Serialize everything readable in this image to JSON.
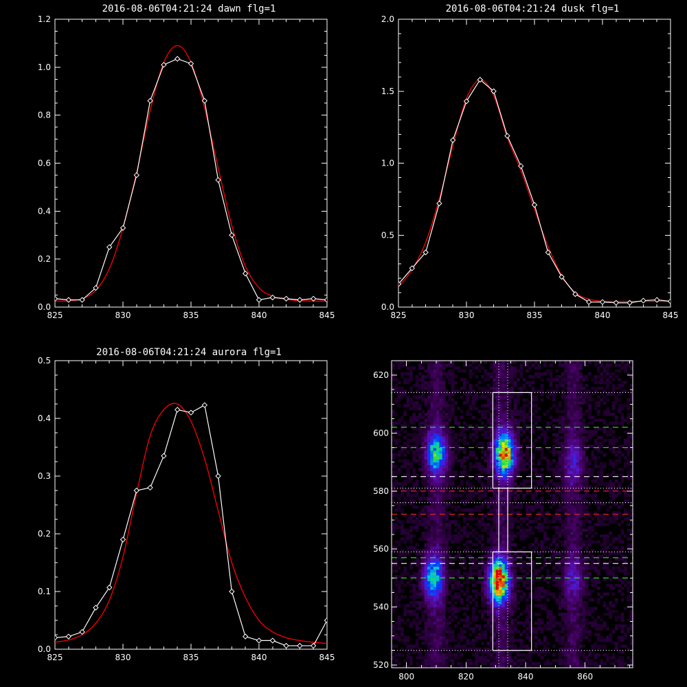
{
  "chart_data": [
    {
      "type": "line",
      "title": "2016-08-06T04:21:24 dawn flg=1",
      "xlim": [
        825,
        845
      ],
      "ylim": [
        0,
        1.2
      ],
      "xticks": [
        "825",
        "830",
        "835",
        "840",
        "845"
      ],
      "yticks": [
        "0.0",
        "0.2",
        "0.4",
        "0.6",
        "0.8",
        "1.0",
        "1.2"
      ],
      "series": [
        {
          "style": "white-diamonds",
          "color": "#ffffff",
          "x": [
            825,
            826,
            827,
            828,
            829,
            830,
            831,
            832,
            833,
            834,
            835,
            836,
            837,
            838,
            839,
            840,
            841,
            842,
            843,
            844,
            845
          ],
          "y": [
            0.035,
            0.03,
            0.03,
            0.08,
            0.25,
            0.33,
            0.55,
            0.86,
            1.01,
            1.035,
            1.015,
            0.86,
            0.53,
            0.3,
            0.14,
            0.03,
            0.04,
            0.035,
            0.03,
            0.035,
            0.03
          ]
        },
        {
          "style": "red-fit",
          "color": "#ff0000",
          "x": [
            825,
            826,
            827,
            828,
            829,
            830,
            831,
            832,
            833,
            834,
            835,
            836,
            837,
            838,
            839,
            840,
            841,
            842,
            843,
            844,
            845
          ],
          "y": [
            0.025,
            0.026,
            0.035,
            0.07,
            0.16,
            0.33,
            0.56,
            0.82,
            1.02,
            1.09,
            1.02,
            0.83,
            0.58,
            0.34,
            0.17,
            0.08,
            0.045,
            0.032,
            0.027,
            0.025,
            0.025
          ]
        }
      ]
    },
    {
      "type": "line",
      "title": "2016-08-06T04:21:24 dusk flg=1",
      "xlim": [
        825,
        845
      ],
      "ylim": [
        0,
        2.0
      ],
      "xticks": [
        "825",
        "830",
        "835",
        "840",
        "845"
      ],
      "yticks": [
        "0.0",
        "0.5",
        "1.0",
        "1.5",
        "2.0"
      ],
      "series": [
        {
          "style": "white-diamonds",
          "color": "#ffffff",
          "x": [
            825,
            826,
            827,
            828,
            829,
            830,
            831,
            832,
            833,
            834,
            835,
            836,
            837,
            838,
            839,
            840,
            841,
            842,
            843,
            844,
            845
          ],
          "y": [
            0.16,
            0.27,
            0.38,
            0.72,
            1.16,
            1.43,
            1.58,
            1.5,
            1.19,
            0.98,
            0.71,
            0.38,
            0.21,
            0.09,
            0.035,
            0.035,
            0.03,
            0.03,
            0.045,
            0.05,
            0.04
          ]
        },
        {
          "style": "red-fit",
          "color": "#ff0000",
          "x": [
            825,
            826,
            827,
            828,
            829,
            830,
            831,
            832,
            833,
            834,
            835,
            836,
            837,
            838,
            839,
            840,
            841,
            842,
            843,
            844,
            845
          ],
          "y": [
            0.14,
            0.26,
            0.45,
            0.75,
            1.12,
            1.45,
            1.58,
            1.47,
            1.18,
            0.95,
            0.68,
            0.42,
            0.22,
            0.1,
            0.055,
            0.04,
            0.04,
            0.04,
            0.04,
            0.04,
            0.04
          ]
        }
      ]
    },
    {
      "type": "line",
      "title": "2016-08-06T04:21:24 aurora flg=1",
      "xlim": [
        825,
        845
      ],
      "ylim": [
        0,
        0.5
      ],
      "xticks": [
        "825",
        "830",
        "835",
        "840",
        "845"
      ],
      "yticks": [
        "0.0",
        "0.1",
        "0.2",
        "0.3",
        "0.4",
        "0.5"
      ],
      "series": [
        {
          "style": "white-diamonds",
          "color": "#ffffff",
          "x": [
            825,
            826,
            827,
            828,
            829,
            830,
            831,
            832,
            833,
            834,
            835,
            836,
            837,
            838,
            839,
            840,
            841,
            842,
            843,
            844,
            845
          ],
          "y": [
            0.02,
            0.022,
            0.03,
            0.072,
            0.107,
            0.19,
            0.275,
            0.28,
            0.335,
            0.415,
            0.41,
            0.423,
            0.3,
            0.1,
            0.022,
            0.015,
            0.015,
            0.006,
            0.006,
            0.006,
            0.05
          ]
        },
        {
          "style": "red-fit",
          "color": "#ff0000",
          "x": [
            825,
            826,
            827,
            828,
            829,
            830,
            831,
            832,
            833,
            834,
            835,
            836,
            837,
            838,
            839,
            840,
            841,
            842,
            843,
            844,
            845
          ],
          "y": [
            0.012,
            0.016,
            0.025,
            0.045,
            0.085,
            0.16,
            0.27,
            0.37,
            0.415,
            0.425,
            0.395,
            0.33,
            0.24,
            0.15,
            0.09,
            0.05,
            0.03,
            0.02,
            0.015,
            0.012,
            0.01
          ]
        }
      ]
    },
    {
      "type": "heatmap",
      "xlim": [
        795,
        876
      ],
      "ylim": [
        519,
        625
      ],
      "xticks": [
        "800",
        "820",
        "840",
        "860"
      ],
      "yticks": [
        "520",
        "540",
        "560",
        "580",
        "600",
        "620"
      ],
      "blobs": [
        {
          "x": 810,
          "y": 593,
          "peak": 0.55
        },
        {
          "x": 809,
          "y": 550,
          "peak": 0.55
        },
        {
          "x": 833,
          "y": 593,
          "peak": 0.85
        },
        {
          "x": 831,
          "y": 549,
          "peak": 1.0
        },
        {
          "x": 856,
          "y": 590,
          "peak": 0.2
        },
        {
          "x": 856,
          "y": 550,
          "peak": 0.18
        }
      ],
      "boxes": [
        {
          "x": [
            829,
            842
          ],
          "y": [
            581,
            614
          ],
          "color": "#ffffff"
        },
        {
          "x": [
            829,
            842
          ],
          "y": [
            525,
            559
          ],
          "color": "#ffffff"
        }
      ],
      "vlines": [
        {
          "x": 831,
          "style": "dotted",
          "color": "#ffffff"
        },
        {
          "x": 834,
          "style": "dotted",
          "color": "#ffffff"
        }
      ],
      "hlines": [
        {
          "y": 614,
          "style": "dotted",
          "color": "#ffffff"
        },
        {
          "y": 602,
          "style": "dashed",
          "color": "#22dd22"
        },
        {
          "y": 595,
          "style": "dashed",
          "color": "#22dd22"
        },
        {
          "y": 585,
          "style": "dashed",
          "color": "#ffffff"
        },
        {
          "y": 581,
          "style": "dotted",
          "color": "#ffffff"
        },
        {
          "y": 580,
          "style": "dashed",
          "color": "#dd2222"
        },
        {
          "y": 576,
          "style": "dotted",
          "color": "#ffffff"
        },
        {
          "y": 572,
          "style": "dashed",
          "color": "#dd2222"
        },
        {
          "y": 559,
          "style": "dotted",
          "color": "#ffffff"
        },
        {
          "y": 557,
          "style": "dashed",
          "color": "#22dd22"
        },
        {
          "y": 555,
          "style": "dashed",
          "color": "#ffffff"
        },
        {
          "y": 550,
          "style": "dashed",
          "color": "#22dd22"
        },
        {
          "y": 525,
          "style": "dotted",
          "color": "#ffffff"
        }
      ]
    }
  ]
}
